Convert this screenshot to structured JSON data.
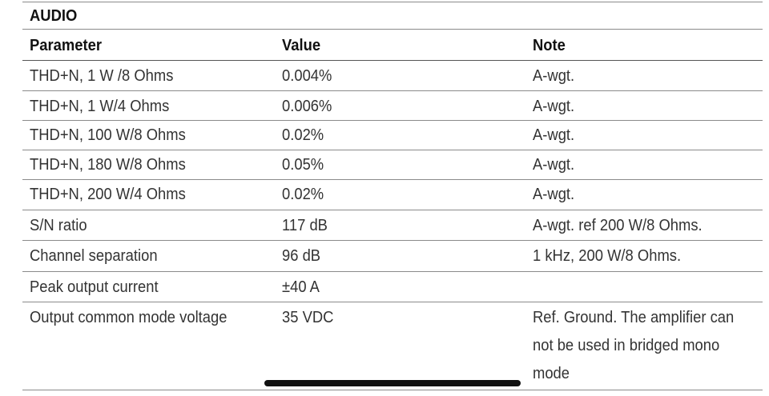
{
  "section_title": "AUDIO",
  "columns": [
    "Parameter",
    "Value",
    "Note"
  ],
  "rows": [
    {
      "parameter": "THD+N, 1 W /8  Ohms",
      "value": "0.004%",
      "note": "A-wgt."
    },
    {
      "parameter": "THD+N, 1 W/4 Ohms",
      "value": "0.006%",
      "note": "A-wgt."
    },
    {
      "parameter": "THD+N, 100 W/8 Ohms",
      "value": "0.02%",
      "note": "A-wgt."
    },
    {
      "parameter": "THD+N, 180 W/8 Ohms",
      "value": "0.05%",
      "note": "A-wgt."
    },
    {
      "parameter": "THD+N, 200 W/4 Ohms",
      "value": "0.02%",
      "note": "A-wgt."
    },
    {
      "parameter": "S/N ratio",
      "value": "117 dB",
      "note": "A-wgt. ref 200 W/8 Ohms."
    },
    {
      "parameter": "Channel separation",
      "value": "96 dB",
      "note": "1 kHz, 200 W/8 Ohms."
    },
    {
      "parameter": "Peak output current",
      "value": "±40 A",
      "note": ""
    },
    {
      "parameter": "Output common mode voltage",
      "value": "35 VDC",
      "note": "Ref. Ground. The amplifier can not be used in bridged mono mode"
    }
  ]
}
